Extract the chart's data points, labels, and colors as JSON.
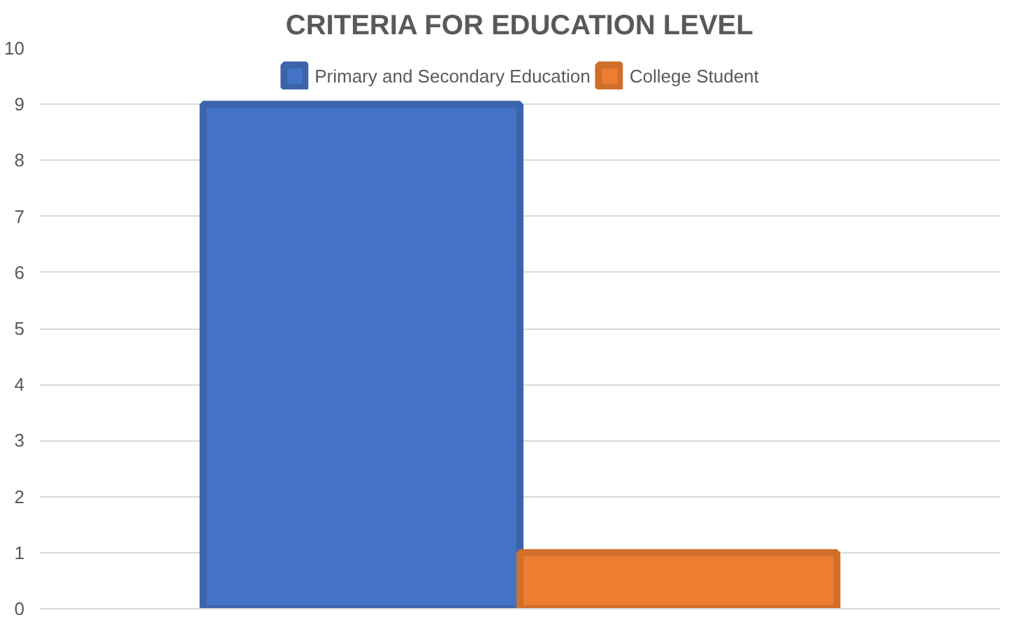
{
  "chart_data": {
    "type": "bar",
    "title": "CRITERIA FOR EDUCATION LEVEL",
    "categories": [
      null
    ],
    "series": [
      {
        "name": "Primary and Secondary Education",
        "color": "#4472c4",
        "values": [
          9
        ]
      },
      {
        "name": "College Student",
        "color": "#ed7d31",
        "values": [
          1
        ]
      }
    ],
    "ylim": [
      0,
      10
    ],
    "yticks": [
      0,
      1,
      2,
      3,
      4,
      5,
      6,
      7,
      8,
      9,
      10
    ],
    "grid": "y",
    "legend": "top"
  }
}
